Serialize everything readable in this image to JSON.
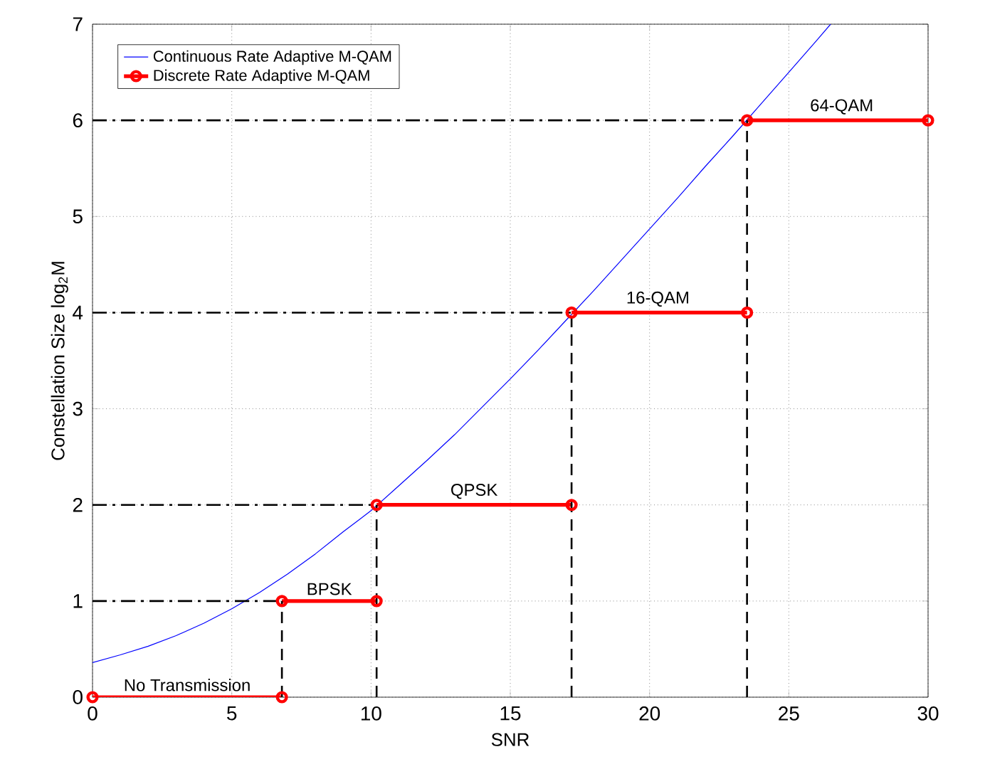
{
  "chart_data": {
    "type": "line",
    "xlabel": "SNR",
    "ylabel": "Constellation Size log$_{2}$M",
    "xlim": [
      0,
      30
    ],
    "ylim": [
      0,
      7
    ],
    "xticks": [
      0,
      5,
      10,
      15,
      20,
      25,
      30
    ],
    "yticks": [
      0,
      1,
      2,
      3,
      4,
      5,
      6,
      7
    ],
    "grid": true,
    "legend": "top left",
    "series": [
      {
        "name": "Continuous Rate Adaptive M-QAM",
        "color": "#0000ff",
        "marker": "none",
        "line_style": "solid",
        "x": [
          0,
          1,
          2,
          3,
          4,
          5,
          6,
          7,
          8,
          9,
          10,
          11,
          12,
          13,
          14,
          15,
          16,
          17,
          18,
          19,
          20,
          21,
          22,
          23,
          24,
          25,
          26,
          26.5
        ],
        "values": [
          0.36,
          0.44,
          0.53,
          0.64,
          0.77,
          0.92,
          1.09,
          1.28,
          1.49,
          1.72,
          1.94,
          2.2,
          2.46,
          2.73,
          3.02,
          3.31,
          3.61,
          3.92,
          4.23,
          4.55,
          4.87,
          5.19,
          5.52,
          5.84,
          6.17,
          6.5,
          6.83,
          7.0
        ]
      },
      {
        "name": "Discrete Rate Adaptive M-QAM",
        "color": "#ff0000",
        "marker": "circle",
        "line_style": "solid",
        "x": [
          0,
          6.8,
          null,
          6.8,
          10.2,
          null,
          10.2,
          17.2,
          null,
          17.2,
          23.5,
          null,
          23.5,
          30
        ],
        "values": [
          0,
          0,
          null,
          1,
          1,
          null,
          2,
          2,
          null,
          4,
          4,
          null,
          6,
          6
        ]
      },
      {
        "color": "#000000",
        "marker": "none",
        "line_style": "dashdot",
        "x": [
          0,
          6.8,
          null,
          0,
          10.2,
          null,
          0,
          17.2,
          null,
          0,
          23.5
        ],
        "values": [
          1,
          1,
          null,
          2,
          2,
          null,
          4,
          4,
          null,
          6,
          6
        ]
      },
      {
        "color": "#000000",
        "marker": "none",
        "line_style": "dashed",
        "x": [
          6.8,
          6.8,
          null,
          10.2,
          10.2,
          null,
          17.2,
          17.2,
          null,
          23.5,
          23.5
        ],
        "values": [
          0,
          1,
          null,
          0,
          2,
          null,
          0,
          4,
          null,
          0,
          6
        ]
      }
    ],
    "annotations": [
      {
        "text": "No Transmission",
        "x": 3.4,
        "y": 0
      },
      {
        "text": "BPSK",
        "x": 8.5,
        "y": 1
      },
      {
        "text": "QPSK",
        "x": 13.7,
        "y": 2
      },
      {
        "text": "16-QAM",
        "x": 20.3,
        "y": 4
      },
      {
        "text": "64-QAM",
        "x": 26.9,
        "y": 6
      }
    ]
  }
}
